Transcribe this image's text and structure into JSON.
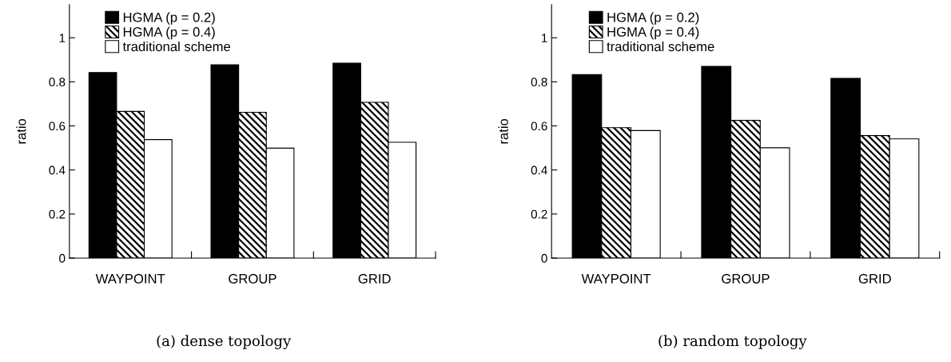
{
  "chart_data": [
    {
      "type": "bar",
      "title": "(a) dense topology",
      "ylabel": "ratio",
      "categories": [
        "WAYPOINT",
        "GROUP",
        "GRID"
      ],
      "series": [
        {
          "name": "HGMA (p = 0.2)",
          "color": "#000000",
          "values": [
            0.842,
            0.877,
            0.885
          ]
        },
        {
          "name": "HGMA (p = 0.4)",
          "color": "#000000",
          "values": [
            0.666,
            0.662,
            0.707
          ]
        },
        {
          "name": "traditional scheme",
          "color": "#ffffff",
          "values": [
            0.538,
            0.499,
            0.526
          ]
        }
      ],
      "ylim": [
        0,
        1.15
      ],
      "yticks": [
        0,
        0.2,
        0.4,
        0.6,
        0.8,
        1
      ],
      "grid": false,
      "legend": "top left"
    },
    {
      "type": "bar",
      "title": "(b) random topology",
      "ylabel": "ratio",
      "categories": [
        "WAYPOINT",
        "GROUP",
        "GRID"
      ],
      "series": [
        {
          "name": "HGMA (p = 0.2)",
          "color": "#000000",
          "values": [
            0.833,
            0.87,
            0.816
          ]
        },
        {
          "name": "HGMA (p = 0.4)",
          "color": "#000000",
          "values": [
            0.592,
            0.625,
            0.556
          ]
        },
        {
          "name": "traditional scheme",
          "color": "#ffffff",
          "values": [
            0.579,
            0.501,
            0.541
          ]
        }
      ],
      "ylim": [
        0,
        1.15
      ],
      "yticks": [
        0,
        0.2,
        0.4,
        0.6,
        0.8,
        1
      ],
      "grid": false,
      "legend": "top left"
    }
  ]
}
